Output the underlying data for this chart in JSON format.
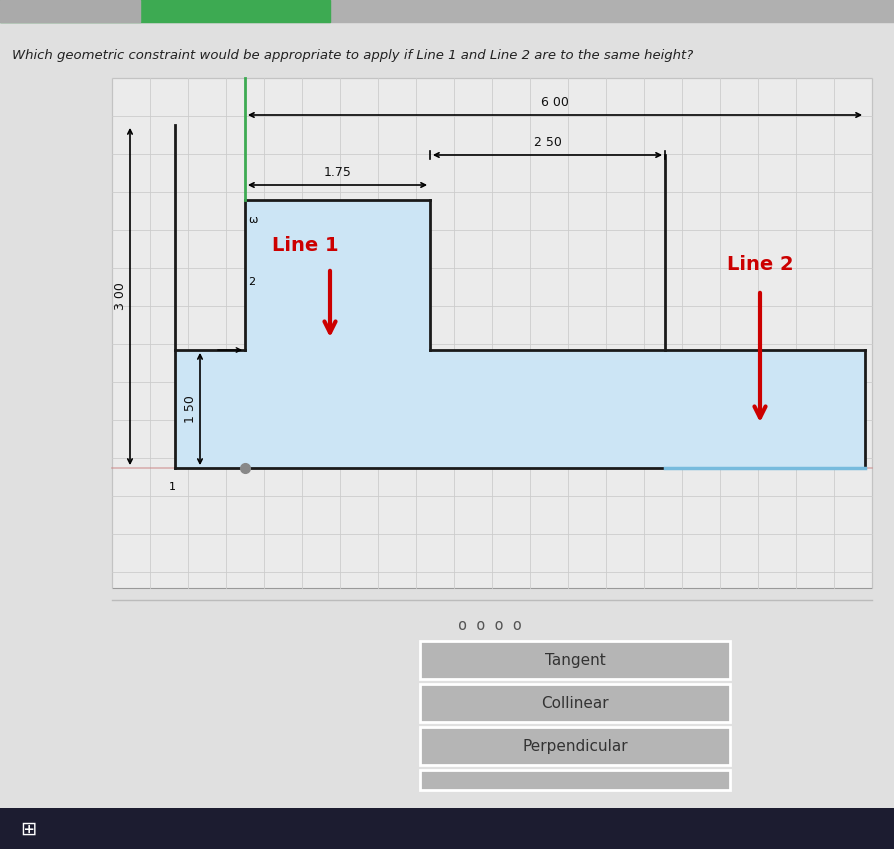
{
  "title": "Which geometric constraint would be appropriate to apply if Line 1 and Line 2 are to the same height?",
  "bg_color": "#e0e0e0",
  "drawing_bg": "#ebebeb",
  "shape_fill": "#cce5f5",
  "outline_color": "#1a1a1a",
  "grid_color": "#cccccc",
  "dim_600": "6 00",
  "dim_250": "2 50",
  "dim_175": "1.75",
  "dim_300": "3 00",
  "dim_150": "1 50",
  "line1_label": "Line 1",
  "line2_label": "Line 2",
  "arrow_color": "#cc0000",
  "dim_color": "#111111",
  "highlight_line_color": "#77bbdd",
  "pink_line_color": "#cc8888",
  "buttons": [
    "Tangent",
    "Collinear",
    "Perpendicular"
  ],
  "button_color": "#b5b5b5",
  "button_text_color": "#333333",
  "dots": "o o o o",
  "green_bar_color": "#3daa52",
  "top_bar_color": "#b0b0b0",
  "taskbar_color": "#1c1c30",
  "label_2": "2",
  "label_omega": "ω",
  "label_1": "1"
}
